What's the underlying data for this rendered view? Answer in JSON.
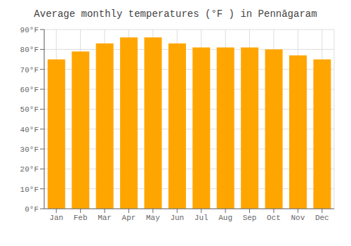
{
  "chart_data": {
    "type": "bar",
    "title": "Average monthly temperatures (°F ) in Pennāgaram",
    "categories": [
      "Jan",
      "Feb",
      "Mar",
      "Apr",
      "May",
      "Jun",
      "Jul",
      "Aug",
      "Sep",
      "Oct",
      "Nov",
      "Dec"
    ],
    "values": [
      75,
      79,
      83,
      86,
      86,
      83,
      81,
      81,
      81,
      80,
      77,
      75
    ],
    "color": "#FFA500",
    "ylim": [
      0,
      90
    ],
    "yticks": [
      {
        "value": 0,
        "label": "0°F"
      },
      {
        "value": 10,
        "label": "10°F"
      },
      {
        "value": 20,
        "label": "20°F"
      },
      {
        "value": 30,
        "label": "30°F"
      },
      {
        "value": 40,
        "label": "40°F"
      },
      {
        "value": 50,
        "label": "50°F"
      },
      {
        "value": 60,
        "label": "60°F"
      },
      {
        "value": 70,
        "label": "70°F"
      },
      {
        "value": 80,
        "label": "80°F"
      },
      {
        "value": 90,
        "label": "90°F"
      }
    ],
    "grid": true
  }
}
